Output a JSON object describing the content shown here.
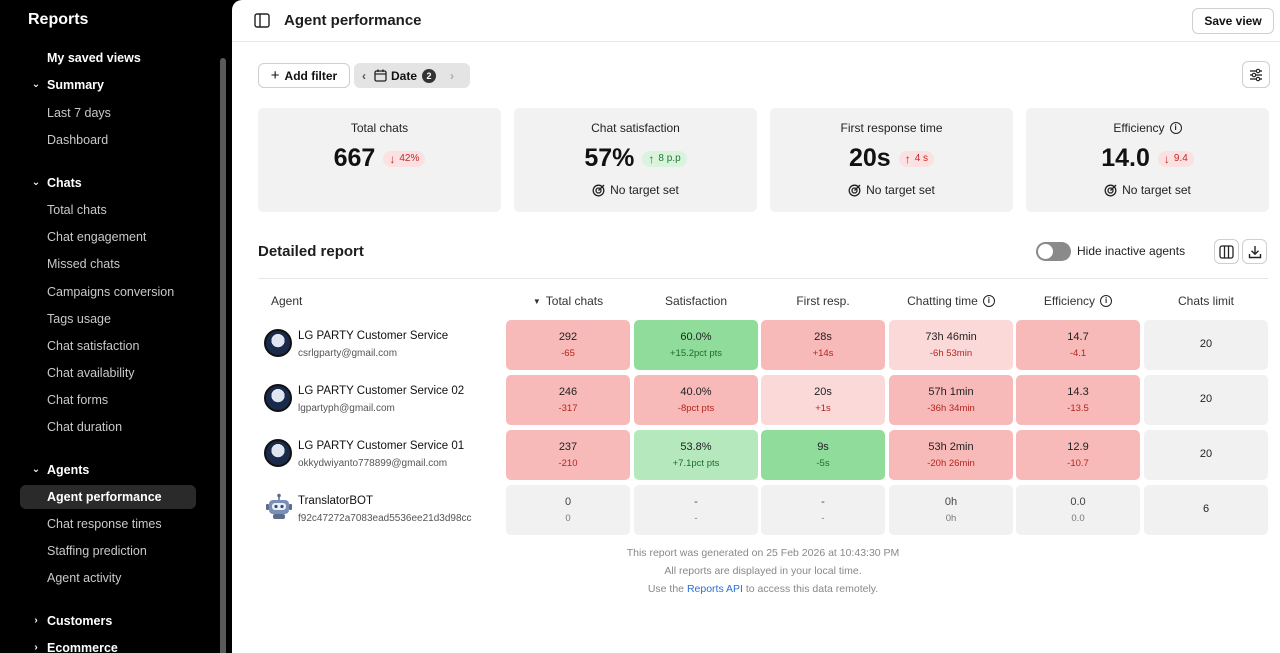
{
  "sidebar": {
    "title": "Reports",
    "saved_views": "My saved views",
    "sections": [
      {
        "label": "Summary",
        "items": [
          "Last 7 days",
          "Dashboard"
        ]
      },
      {
        "label": "Chats",
        "items": [
          "Total chats",
          "Chat engagement",
          "Missed chats",
          "Campaigns conversion",
          "Tags usage",
          "Chat satisfaction",
          "Chat availability",
          "Chat forms",
          "Chat duration"
        ]
      },
      {
        "label": "Agents",
        "items": [
          "Agent performance",
          "Chat response times",
          "Staffing prediction",
          "Agent activity"
        ]
      },
      {
        "label": "Customers",
        "items": []
      },
      {
        "label": "Ecommerce",
        "items": []
      }
    ],
    "active_item": "Agent performance"
  },
  "header": {
    "title": "Agent performance",
    "save_view": "Save view"
  },
  "filters": {
    "add_filter": "Add filter",
    "date_label": "Date",
    "date_count": "2"
  },
  "kpis": [
    {
      "label": "Total chats",
      "value": "667",
      "delta": "42%",
      "direction": "down",
      "target": ""
    },
    {
      "label": "Chat satisfaction",
      "value": "57%",
      "delta": "8 p.p",
      "direction": "up",
      "target": "No target set"
    },
    {
      "label": "First response time",
      "value": "20s",
      "delta": "4 s",
      "direction": "up-bad",
      "target": "No target set"
    },
    {
      "label": "Efficiency",
      "value": "14.0",
      "delta": "9.4",
      "direction": "down",
      "target": "No target set",
      "info": true
    }
  ],
  "report": {
    "title": "Detailed report",
    "hide_inactive": "Hide inactive agents",
    "hide_inactive_on": false,
    "columns": [
      "Agent",
      "Total chats",
      "Satisfaction",
      "First resp.",
      "Chatting time",
      "Efficiency",
      "Chats limit"
    ],
    "sorted_column": "Total chats",
    "rows": [
      {
        "name": "LG PARTY Customer Service",
        "email": "csrlgparty@gmail.com",
        "avatar": "party-logo-avatar",
        "cells": [
          {
            "value": "292",
            "delta": "-65",
            "color": "red"
          },
          {
            "value": "60.0%",
            "delta": "+15.2pct pts",
            "color": "green"
          },
          {
            "value": "28s",
            "delta": "+14s",
            "color": "red"
          },
          {
            "value": "73h 46min",
            "delta": "-6h 53min",
            "color": "lightred"
          },
          {
            "value": "14.7",
            "delta": "-4.1",
            "color": "red"
          }
        ],
        "limit": "20"
      },
      {
        "name": "LG PARTY Customer Service 02",
        "email": "lgpartyph@gmail.com",
        "avatar": "party-logo-avatar",
        "cells": [
          {
            "value": "246",
            "delta": "-317",
            "color": "red"
          },
          {
            "value": "40.0%",
            "delta": "-8pct pts",
            "color": "red"
          },
          {
            "value": "20s",
            "delta": "+1s",
            "color": "lightred"
          },
          {
            "value": "57h 1min",
            "delta": "-36h 34min",
            "color": "red"
          },
          {
            "value": "14.3",
            "delta": "-13.5",
            "color": "red"
          }
        ],
        "limit": "20"
      },
      {
        "name": "LG PARTY Customer Service 01",
        "email": "okkydwiyanto778899@gmail.com",
        "avatar": "party-logo-avatar",
        "cells": [
          {
            "value": "237",
            "delta": "-210",
            "color": "red"
          },
          {
            "value": "53.8%",
            "delta": "+7.1pct pts",
            "color": "lightgreen"
          },
          {
            "value": "9s",
            "delta": "-5s",
            "color": "green"
          },
          {
            "value": "53h 2min",
            "delta": "-20h 26min",
            "color": "red"
          },
          {
            "value": "12.9",
            "delta": "-10.7",
            "color": "red"
          }
        ],
        "limit": "20"
      },
      {
        "name": "TranslatorBOT",
        "email": "f92c47272a7083ead5536ee21d3d98cc",
        "avatar": "robot-avatar",
        "cells": [
          {
            "value": "0",
            "delta": "0",
            "color": "gray"
          },
          {
            "value": "-",
            "delta": "-",
            "color": "gray"
          },
          {
            "value": "-",
            "delta": "-",
            "color": "gray"
          },
          {
            "value": "0h",
            "delta": "0h",
            "color": "gray"
          },
          {
            "value": "0.0",
            "delta": "0.0",
            "color": "gray"
          }
        ],
        "limit": "6"
      }
    ]
  },
  "footer": {
    "generated": "This report was generated on 25 Feb 2026 at 10:43:30 PM",
    "timezone": "All reports are displayed in your local time.",
    "api_prefix": "Use the ",
    "api_link": "Reports API",
    "api_suffix": " to access this data remotely."
  },
  "colors": {
    "red": "#f8b9b9",
    "lightred": "#fcd9d9",
    "green": "#8fdc9b",
    "lightgreen": "#b5e8bd",
    "gray": "#f1f1f1",
    "link": "#2a6fd6"
  }
}
